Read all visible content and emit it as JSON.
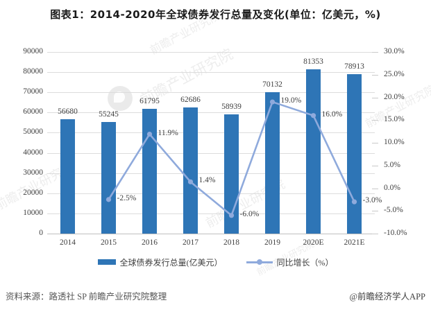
{
  "title": "图表1：2014-2020年全球债券发行总量及变化(单位：亿美元，%)",
  "chart_data": {
    "type": "bar",
    "subtype": "bar-line-combo",
    "categories": [
      "2014",
      "2015",
      "2016",
      "2017",
      "2018",
      "2019",
      "2020E",
      "2021E"
    ],
    "series": [
      {
        "name": "全球债券发行总量(亿美元）",
        "type": "bar",
        "axis": "left",
        "color": "#2E75B6",
        "values": [
          56680,
          55245,
          61795,
          62686,
          58939,
          70132,
          81353,
          78913
        ],
        "value_labels": [
          "56680",
          "55245",
          "61795",
          "62686",
          "58939",
          "70132",
          "81353",
          "78913"
        ]
      },
      {
        "name": "同比增长（%）",
        "type": "line",
        "axis": "right",
        "color": "#8FAADC",
        "values": [
          null,
          -2.5,
          11.9,
          1.4,
          -6.0,
          19.0,
          16.0,
          -3.0
        ],
        "value_labels": [
          "",
          "-2.5%",
          "11.9%",
          "1.4%",
          "-6.0%",
          "19.0%",
          "16.0%",
          "-3.0%"
        ]
      }
    ],
    "left_axis": {
      "min": 0,
      "max": 90000,
      "step": 10000,
      "tick_labels": [
        "90000",
        "80000",
        "70000",
        "60000",
        "50000",
        "40000",
        "30000",
        "20000",
        "10000",
        "0"
      ]
    },
    "right_axis": {
      "min": -10,
      "max": 30,
      "step": 5,
      "tick_labels": [
        "30.0%",
        "25.0%",
        "20.0%",
        "15.0%",
        "10.0%",
        "5.0%",
        "0.0%",
        "-5.0%",
        "-10.0%"
      ]
    },
    "grid": "horizontal",
    "legend_position": "bottom"
  },
  "legend": {
    "bar_label": "全球债券发行总量(亿美元）",
    "line_label": "同比增长（%）"
  },
  "footer": {
    "source": "资料来源：路透社 SP 前瞻产业研究院整理",
    "credit": "@前瞻经济学人APP"
  },
  "watermark": {
    "text": "前瞻产业研究院"
  },
  "colors": {
    "bar": "#2E75B6",
    "line": "#8FAADC",
    "grid": "#DCDCDC",
    "axis_text": "#404040"
  }
}
